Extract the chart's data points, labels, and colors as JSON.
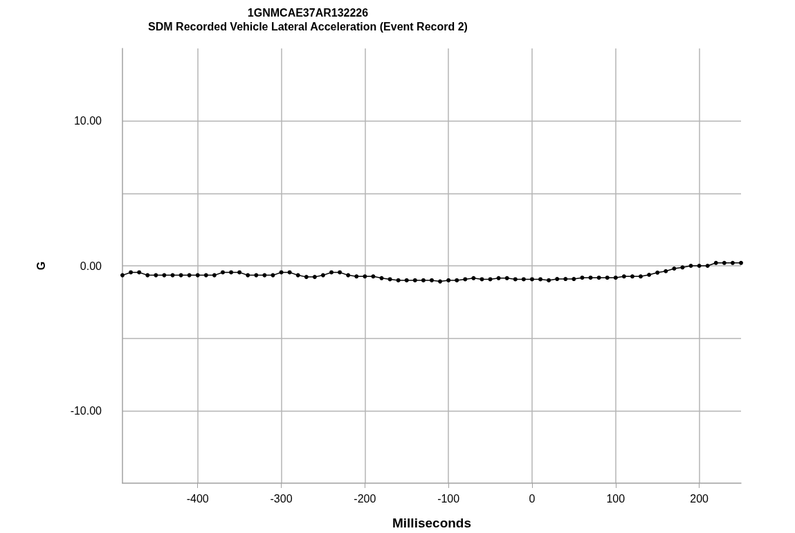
{
  "chart_data": {
    "type": "line",
    "title": "1GNMCAE37AR132226",
    "subtitle": "SDM Recorded Vehicle Lateral Acceleration (Event Record 2)",
    "xlabel": "Milliseconds",
    "ylabel": "G",
    "x": [
      -490,
      -480,
      -470,
      -460,
      -450,
      -440,
      -430,
      -420,
      -410,
      -400,
      -390,
      -380,
      -370,
      -360,
      -350,
      -340,
      -330,
      -320,
      -310,
      -300,
      -290,
      -280,
      -270,
      -260,
      -250,
      -240,
      -230,
      -220,
      -210,
      -200,
      -190,
      -180,
      -170,
      -160,
      -150,
      -140,
      -130,
      -120,
      -110,
      -100,
      -90,
      -80,
      -70,
      -60,
      -50,
      -40,
      -30,
      -20,
      -10,
      0,
      10,
      20,
      30,
      40,
      50,
      60,
      70,
      80,
      90,
      100,
      110,
      120,
      130,
      140,
      150,
      160,
      170,
      180,
      190,
      200,
      210,
      220,
      230,
      240,
      250
    ],
    "series": [
      {
        "color": "#000000",
        "values": [
          -0.65,
          -0.45,
          -0.45,
          -0.65,
          -0.65,
          -0.65,
          -0.65,
          -0.65,
          -0.65,
          -0.65,
          -0.65,
          -0.65,
          -0.45,
          -0.45,
          -0.45,
          -0.65,
          -0.65,
          -0.65,
          -0.65,
          -0.45,
          -0.45,
          -0.65,
          -0.77,
          -0.77,
          -0.65,
          -0.45,
          -0.45,
          -0.65,
          -0.73,
          -0.73,
          -0.73,
          -0.85,
          -0.93,
          -1.0,
          -1.0,
          -1.0,
          -1.0,
          -1.0,
          -1.08,
          -1.0,
          -1.0,
          -0.93,
          -0.85,
          -0.93,
          -0.93,
          -0.85,
          -0.85,
          -0.93,
          -0.93,
          -0.93,
          -0.93,
          -1.0,
          -0.91,
          -0.91,
          -0.91,
          -0.82,
          -0.82,
          -0.82,
          -0.82,
          -0.82,
          -0.73,
          -0.73,
          -0.73,
          -0.62,
          -0.47,
          -0.37,
          -0.19,
          -0.11,
          0,
          0,
          0,
          0.2,
          0.2,
          0.2,
          0.2
        ]
      }
    ],
    "xlim": [
      -490,
      250
    ],
    "xticks": [
      -400,
      -300,
      -200,
      -100,
      0,
      100,
      200
    ],
    "ylim": [
      -15,
      15
    ],
    "yticks": [
      {
        "value": -10,
        "label": "-10.00"
      },
      {
        "value": -5,
        "label": null
      },
      {
        "value": 0,
        "label": "0.00"
      },
      {
        "value": 5,
        "label": null
      },
      {
        "value": 10,
        "label": "10.00"
      }
    ],
    "grid": true,
    "marker": "circle",
    "line_style": "solid"
  }
}
